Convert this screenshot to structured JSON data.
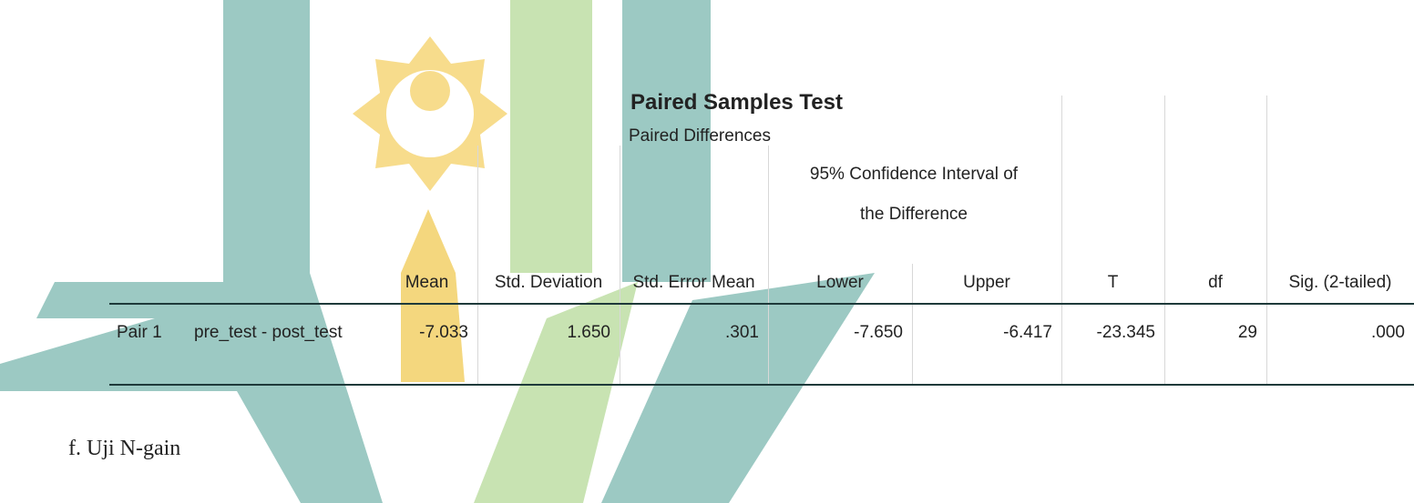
{
  "table": {
    "title": "Paired Samples Test",
    "group_header": "Paired Differences",
    "ci_header_line1": "95% Confidence Interval of",
    "ci_header_line2": "the Difference",
    "columns": [
      "Mean",
      "Std. Deviation",
      "Std. Error Mean",
      "Lower",
      "Upper",
      "T",
      "df",
      "Sig. (2-tailed)"
    ],
    "rows": [
      [
        "Pair 1",
        "pre_test - post_test",
        "-7.033",
        "1.650",
        ".301",
        "-7.650",
        "-6.417",
        "-23.345",
        "29",
        ".000"
      ]
    ]
  },
  "section": {
    "heading": "f.  Uji N-gain"
  }
}
